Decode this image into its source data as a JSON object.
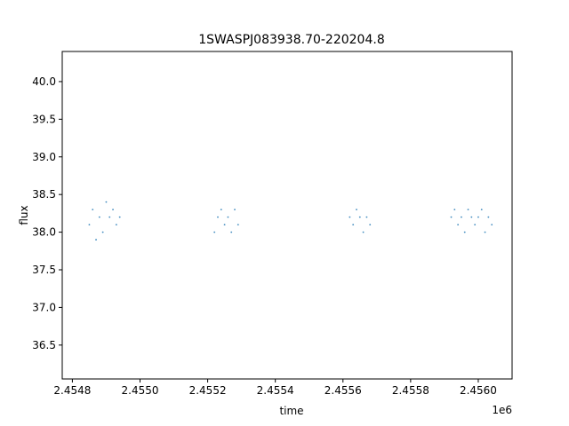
{
  "chart_data": {
    "type": "scatter",
    "title": "1SWASPJ083938.70-220204.8",
    "xlabel": "time",
    "ylabel": "flux",
    "x_offset_label": "1e6",
    "x_unit_scale": 1000000,
    "xlim": [
      2454770,
      2456100
    ],
    "ylim": [
      36.05,
      40.4
    ],
    "x_ticks": [
      2454800,
      2455000,
      2455200,
      2455400,
      2455600,
      2455800,
      2456000
    ],
    "x_tick_labels": [
      "2.4548",
      "2.4550",
      "2.4552",
      "2.4554",
      "2.4556",
      "2.4558",
      "2.4560"
    ],
    "y_ticks": [
      36.5,
      37.0,
      37.5,
      38.0,
      38.5,
      39.0,
      39.5,
      40.0
    ],
    "y_tick_labels": [
      "36.5",
      "37.0",
      "37.5",
      "38.0",
      "38.5",
      "39.0",
      "39.5",
      "40.0"
    ],
    "grid": false,
    "legend": "none",
    "point_color": "#1f77b4",
    "series": [
      {
        "x": [
          2454850,
          2454860,
          2454870,
          2454880,
          2454890,
          2454900,
          2454910,
          2454920,
          2454930,
          2454940,
          2455220,
          2455230,
          2455240,
          2455250,
          2455260,
          2455270,
          2455280,
          2455290,
          2455620,
          2455630,
          2455640,
          2455650,
          2455660,
          2455670,
          2455680,
          2455920,
          2455930,
          2455940,
          2455950,
          2455960,
          2455970,
          2455980,
          2455990,
          2456000,
          2456010,
          2456020,
          2456030,
          2456040
        ],
        "y": [
          38.1,
          38.3,
          37.9,
          38.2,
          38.0,
          38.4,
          38.2,
          38.3,
          38.1,
          38.2,
          38.0,
          38.2,
          38.3,
          38.1,
          38.2,
          38.0,
          38.3,
          38.1,
          38.2,
          38.1,
          38.3,
          38.2,
          38.0,
          38.2,
          38.1,
          38.2,
          38.3,
          38.1,
          38.2,
          38.0,
          38.3,
          38.2,
          38.1,
          38.2,
          38.3,
          38.0,
          38.2,
          38.1
        ]
      }
    ]
  }
}
